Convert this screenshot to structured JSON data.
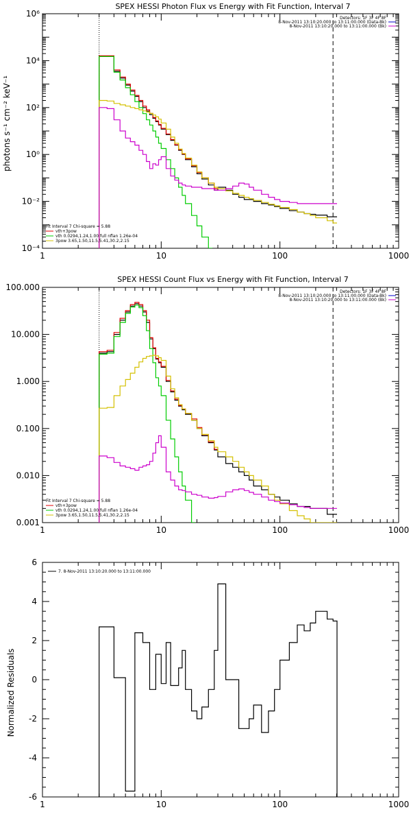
{
  "chart_data": [
    {
      "type": "line",
      "title": "SPEX HESSI Photon Flux vs Energy with Fit Function, Interval 7",
      "xlabel": "",
      "ylabel": "photons s⁻¹ cm⁻² keV⁻¹",
      "xscale": "log",
      "yscale": "log",
      "xlim": [
        1,
        1000
      ],
      "ylim": [
        0.0001,
        1000000
      ],
      "xticks": [
        "1",
        "10",
        "100",
        "1000"
      ],
      "yticks": [
        "10⁻⁴",
        "10⁻²",
        "10⁰",
        "10²",
        "10⁴",
        "10⁶"
      ],
      "vlines": [
        {
          "x": 3,
          "style": "dotted"
        },
        {
          "x": 280,
          "style": "dashed"
        }
      ],
      "legend_topright": [
        "Detectors: 1F 3F 4F 8F",
        "8-Nov-2011 13:10:20.000 to 13:11:00.000 (Data-Bk)",
        "8-Nov-2011 13:10:20.000 to 13:11:00.000 (Bk)"
      ],
      "legend_bottomleft": [
        "Fit Interval  7   Chi-square = 5.88",
        "vth+3pow",
        "vth 0.0294,1.24,1.00  full nflan 1.26e-04",
        "3pow 3.65,1.50,11.5,5.41,30.2,2.15"
      ],
      "series": [
        {
          "color": "#000000",
          "x": [
            3,
            3.5,
            4,
            4.5,
            5,
            5.5,
            6,
            6.5,
            7,
            7.5,
            8,
            8.5,
            9,
            9.5,
            10,
            11,
            12,
            13,
            14,
            15,
            16,
            18,
            20,
            22,
            25,
            28,
            30,
            35,
            40,
            45,
            50,
            55,
            60,
            70,
            80,
            90,
            100,
            120,
            140,
            160,
            180,
            200,
            250,
            280
          ],
          "y": [
            15000,
            15000,
            3500,
            1800,
            900,
            500,
            300,
            180,
            100,
            70,
            50,
            35,
            25,
            18,
            12,
            7,
            4,
            2.5,
            1.5,
            1,
            0.6,
            0.3,
            0.15,
            0.09,
            0.05,
            0.03,
            0.04,
            0.03,
            0.02,
            0.015,
            0.012,
            0.012,
            0.01,
            0.008,
            0.007,
            0.006,
            0.005,
            0.004,
            0.0035,
            0.003,
            0.0028,
            0.0026,
            0.0022,
            0.0022
          ]
        },
        {
          "color": "#e00000",
          "x": [
            3,
            3.5,
            4,
            4.5,
            5,
            5.5,
            6,
            6.5,
            7,
            7.5,
            8,
            8.5,
            9,
            9.5,
            10,
            11,
            12,
            13,
            14,
            15,
            16,
            18,
            20,
            22,
            25,
            28
          ],
          "y": [
            16000,
            16000,
            4000,
            2000,
            1000,
            560,
            330,
            200,
            115,
            80,
            56,
            38,
            27,
            19,
            13,
            7.5,
            4.3,
            2.6,
            1.6,
            1.05,
            0.65,
            0.33,
            0.17,
            0.1,
            0.06,
            0.035
          ]
        },
        {
          "color": "#00cc00",
          "x": [
            3,
            3.5,
            4,
            4.5,
            5,
            5.5,
            6,
            6.5,
            7,
            7.5,
            8,
            8.5,
            9,
            9.5,
            10,
            11,
            12,
            13,
            14,
            15,
            16,
            18,
            20,
            22,
            25
          ],
          "y": [
            15000,
            15000,
            3200,
            1500,
            700,
            350,
            180,
            100,
            55,
            30,
            18,
            10,
            5.5,
            3,
            1.8,
            0.6,
            0.25,
            0.1,
            0.04,
            0.018,
            0.008,
            0.0025,
            0.0009,
            0.0003,
            0.0001
          ]
        },
        {
          "color": "#d4c000",
          "x": [
            3,
            3.5,
            4,
            4.5,
            5,
            5.5,
            6,
            6.5,
            7,
            7.5,
            8,
            8.5,
            9,
            9.5,
            10,
            11,
            12,
            13,
            14,
            15,
            16,
            18,
            20,
            22,
            25,
            28,
            30,
            35,
            40,
            45,
            50,
            55,
            60,
            70,
            80,
            90,
            100,
            120,
            140,
            160,
            180,
            200,
            250,
            280
          ],
          "y": [
            200,
            190,
            150,
            130,
            115,
            100,
            90,
            80,
            72,
            64,
            56,
            48,
            40,
            32,
            22,
            12,
            5.5,
            3,
            1.7,
            1.1,
            0.7,
            0.35,
            0.18,
            0.1,
            0.06,
            0.04,
            0.035,
            0.028,
            0.022,
            0.018,
            0.015,
            0.013,
            0.011,
            0.009,
            0.0075,
            0.0065,
            0.0055,
            0.0045,
            0.0035,
            0.003,
            0.0025,
            0.002,
            0.0015,
            0.0012
          ]
        },
        {
          "color": "#cc00cc",
          "x": [
            3,
            3.5,
            4,
            4.5,
            5,
            5.5,
            6,
            6.5,
            7,
            7.5,
            8,
            8.5,
            9,
            9.5,
            10,
            11,
            12,
            13,
            14,
            15,
            16,
            18,
            20,
            22,
            25,
            28,
            30,
            35,
            40,
            45,
            50,
            55,
            60,
            70,
            80,
            90,
            100,
            120,
            140,
            160,
            180,
            200,
            250,
            280
          ],
          "y": [
            100,
            90,
            30,
            10,
            5,
            3.5,
            2.5,
            1.5,
            1.0,
            0.5,
            0.25,
            0.4,
            0.35,
            0.6,
            0.8,
            0.25,
            0.12,
            0.08,
            0.06,
            0.05,
            0.045,
            0.04,
            0.04,
            0.035,
            0.035,
            0.03,
            0.03,
            0.035,
            0.045,
            0.06,
            0.055,
            0.04,
            0.03,
            0.02,
            0.015,
            0.012,
            0.01,
            0.009,
            0.008,
            0.008,
            0.008,
            0.008,
            0.008,
            0.008
          ]
        }
      ]
    },
    {
      "type": "line",
      "title": "SPEX HESSI Count Flux vs Energy with Fit Function, Interval 7",
      "xlabel": "",
      "ylabel": "",
      "xscale": "log",
      "yscale": "log",
      "xlim": [
        1,
        1000
      ],
      "ylim": [
        0.001,
        100
      ],
      "xticks": [
        "1",
        "10",
        "100",
        "1000"
      ],
      "yticks": [
        "0.001",
        "0.010",
        "0.100",
        "1.000",
        "10.000",
        "100.000"
      ],
      "vlines": [
        {
          "x": 3,
          "style": "dotted"
        },
        {
          "x": 280,
          "style": "dashed"
        }
      ],
      "legend_topright": [
        "Detectors: 1F 3F 4F 8F",
        "8-Nov-2011 13:10:20.000 to 13:11:00.000 (Data-Bk)",
        "8-Nov-2011 13:10:20.000 to 13:11:00.000 (Bk)"
      ],
      "legend_bottomleft": [
        "Fit Interval  7   Chi-square = 5.88",
        "vth+3pow",
        "vth 0.0294,1.24,1.00  full nflan 1.26e-04",
        "3pow 3.65,1.50,11.5,5.41,30.2,2.15"
      ],
      "series": [
        {
          "color": "#000000",
          "x": [
            3,
            3.5,
            4,
            4.5,
            5,
            5.5,
            6,
            6.5,
            7,
            7.5,
            8,
            8.5,
            9,
            9.5,
            10,
            11,
            12,
            13,
            14,
            15,
            16,
            18,
            20,
            22,
            25,
            28,
            30,
            35,
            40,
            45,
            50,
            55,
            60,
            70,
            80,
            90,
            100,
            120,
            140,
            160,
            180,
            200,
            250,
            280
          ],
          "y": [
            4,
            4.3,
            10,
            20,
            30,
            40,
            45,
            40,
            30,
            18,
            8,
            5,
            3,
            2.5,
            2.0,
            1.0,
            0.6,
            0.4,
            0.3,
            0.25,
            0.2,
            0.15,
            0.1,
            0.07,
            0.05,
            0.035,
            0.025,
            0.018,
            0.015,
            0.012,
            0.01,
            0.008,
            0.006,
            0.005,
            0.004,
            0.0035,
            0.003,
            0.0025,
            0.0022,
            0.0022,
            0.002,
            0.002,
            0.0015,
            0.0015
          ]
        },
        {
          "color": "#e00000",
          "x": [
            3,
            3.5,
            4,
            4.5,
            5,
            5.5,
            6,
            6.5,
            7,
            7.5,
            8,
            8.5,
            9,
            9.5,
            10,
            11,
            12,
            13,
            14,
            15,
            16,
            18,
            20,
            22,
            25,
            28
          ],
          "y": [
            4.3,
            4.6,
            11,
            22,
            32,
            43,
            48,
            43,
            32,
            20,
            8.5,
            5.2,
            3.1,
            2.6,
            2.1,
            1.05,
            0.63,
            0.42,
            0.31,
            0.26,
            0.21,
            0.16,
            0.105,
            0.074,
            0.052,
            0.036
          ]
        },
        {
          "color": "#00cc00",
          "x": [
            3,
            3.5,
            4,
            4.5,
            5,
            5.5,
            6,
            6.5,
            7,
            7.5,
            8,
            8.5,
            9,
            9.5,
            10,
            11,
            12,
            13,
            14,
            15,
            16,
            18
          ],
          "y": [
            3.8,
            4.0,
            9,
            18,
            28,
            38,
            42,
            37,
            25,
            12,
            5,
            2.5,
            1.2,
            0.8,
            0.5,
            0.15,
            0.06,
            0.025,
            0.012,
            0.006,
            0.003,
            0.001
          ]
        },
        {
          "color": "#d4c000",
          "x": [
            3,
            3.5,
            4,
            4.5,
            5,
            5.5,
            6,
            6.5,
            7,
            7.5,
            8,
            8.5,
            9,
            9.5,
            10,
            11,
            12,
            13,
            14,
            15,
            16,
            18,
            20,
            22,
            25,
            28,
            30,
            35,
            40,
            45,
            50,
            55,
            60,
            70,
            80,
            90,
            100,
            120,
            140,
            160,
            180,
            200,
            250,
            280
          ],
          "y": [
            0.27,
            0.28,
            0.5,
            0.8,
            1.1,
            1.5,
            2.0,
            2.6,
            3.1,
            3.4,
            3.5,
            3.6,
            3.5,
            3.2,
            2.8,
            1.3,
            0.7,
            0.45,
            0.32,
            0.26,
            0.21,
            0.15,
            0.1,
            0.075,
            0.055,
            0.04,
            0.032,
            0.025,
            0.02,
            0.015,
            0.012,
            0.01,
            0.008,
            0.006,
            0.004,
            0.003,
            0.0025,
            0.0018,
            0.0014,
            0.0012,
            0.001,
            0.001,
            0.001,
            0.001
          ]
        },
        {
          "color": "#cc00cc",
          "x": [
            3,
            3.5,
            4,
            4.5,
            5,
            5.5,
            6,
            6.5,
            7,
            7.5,
            8,
            8.5,
            9,
            9.5,
            10,
            11,
            12,
            13,
            14,
            15,
            16,
            18,
            20,
            22,
            25,
            28,
            30,
            35,
            40,
            45,
            50,
            55,
            60,
            70,
            80,
            90,
            100,
            120,
            140,
            160,
            180,
            200,
            250,
            280
          ],
          "y": [
            0.026,
            0.024,
            0.019,
            0.016,
            0.015,
            0.014,
            0.013,
            0.015,
            0.016,
            0.017,
            0.02,
            0.03,
            0.05,
            0.07,
            0.04,
            0.012,
            0.008,
            0.006,
            0.005,
            0.0048,
            0.0045,
            0.004,
            0.0038,
            0.0035,
            0.0033,
            0.0034,
            0.0036,
            0.0045,
            0.005,
            0.0052,
            0.0048,
            0.0044,
            0.004,
            0.0035,
            0.003,
            0.0028,
            0.0026,
            0.0024,
            0.0022,
            0.0021,
            0.002,
            0.002,
            0.002,
            0.002
          ]
        }
      ]
    },
    {
      "type": "line",
      "title": "",
      "xlabel": "",
      "ylabel": "Normalized Residuals",
      "xscale": "log",
      "yscale": "linear",
      "xlim": [
        1,
        1000
      ],
      "ylim": [
        -6,
        6
      ],
      "xticks": [
        "1",
        "10",
        "100",
        "1000"
      ],
      "yticks": [
        "-6",
        "-4",
        "-2",
        "0",
        "2",
        "4",
        "6"
      ],
      "legend": [
        "7.  8-Nov-2011 13:10:20.000 to 13:11:00.000"
      ],
      "series": [
        {
          "color": "#000000",
          "x": [
            3,
            3.5,
            4,
            4.5,
            5,
            5.5,
            6,
            6.5,
            7,
            7.5,
            8,
            8.5,
            9,
            9.5,
            10,
            11,
            12,
            13,
            14,
            15,
            16,
            18,
            20,
            22,
            25,
            28,
            30,
            35,
            40,
            45,
            50,
            55,
            60,
            70,
            80,
            90,
            100,
            120,
            140,
            160,
            180,
            200,
            250,
            280
          ],
          "y": [
            2.7,
            2.7,
            0.1,
            0.1,
            -5.7,
            -5.7,
            2.4,
            2.4,
            1.9,
            1.9,
            -0.5,
            -0.5,
            1.3,
            1.3,
            -0.2,
            1.9,
            -0.3,
            -0.3,
            0.6,
            1.5,
            -0.5,
            -1.6,
            -2.0,
            -1.4,
            -0.5,
            1.5,
            4.9,
            0.0,
            0.0,
            -2.5,
            -2.5,
            -2.0,
            -1.3,
            -2.7,
            -1.6,
            -0.5,
            1.0,
            1.9,
            2.8,
            2.5,
            2.9,
            3.5,
            3.1,
            3.0
          ]
        }
      ]
    }
  ]
}
